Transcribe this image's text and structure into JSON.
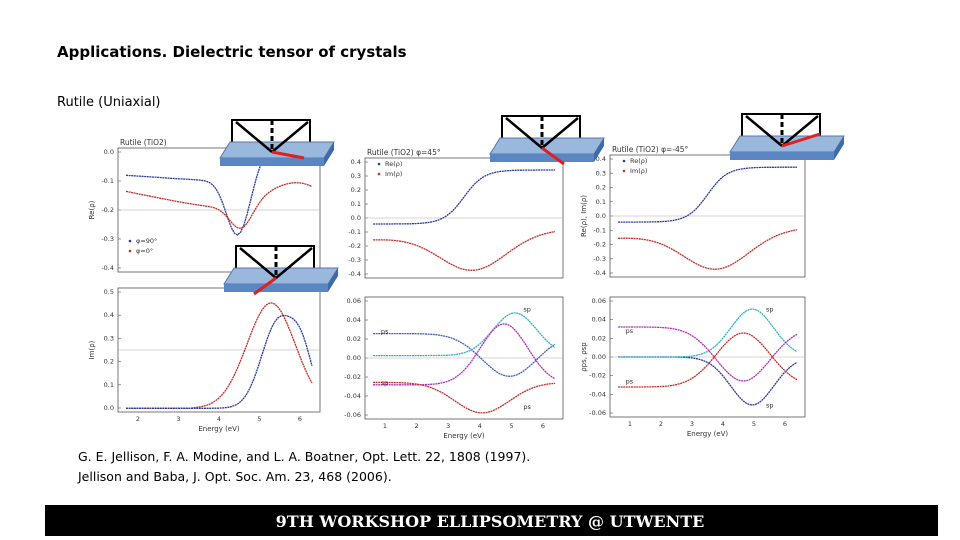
{
  "slide": {
    "title": "Applications. Dielectric tensor of crystals",
    "subtitle": "Rutile (Uniaxial)",
    "citations": [
      "G. E. Jellison, F. A. Modine, and L. A. Boatner, Opt. Lett. 22, 1808 (1997).",
      "Jellison and Baba, J. Opt. Soc. Am. 23, 468 (2006)."
    ],
    "footer": "9TH WORKSHOP ELLIPSOMETRY @ UTWENTE"
  },
  "panels": [
    {
      "title": "Rutile (TiO2)",
      "ylabel": "Re(ρ)",
      "yticks": [
        "0.0",
        "-0.1",
        "-0.2",
        "-0.3",
        "-0.4"
      ],
      "xticks": [],
      "xlabel": "",
      "legend": [
        "φ=90°",
        "φ=0°"
      ],
      "labels": []
    },
    {
      "title": "",
      "ylabel": "Im(ρ)",
      "yticks": [
        "0.5",
        "0.4",
        "0.3",
        "0.2",
        "0.1",
        "0.0"
      ],
      "xticks": [
        "2",
        "3",
        "4",
        "5",
        "6"
      ],
      "xlabel": "Energy (eV)",
      "legend": [],
      "labels": []
    },
    {
      "title": "Rutile (TiO2) φ=45°",
      "ylabel": "",
      "yticks": [
        "0.4",
        "0.3",
        "0.2",
        "0.1",
        "0.0",
        "-0.1",
        "-0.2",
        "-0.3",
        "-0.4"
      ],
      "xticks": [],
      "xlabel": "",
      "legend": [
        "Re(ρ)",
        "Im(ρ)"
      ],
      "labels": []
    },
    {
      "title": "",
      "ylabel": "",
      "yticks": [
        "0.06",
        "0.04",
        "0.02",
        "0.00",
        "-0.02",
        "-0.04",
        "-0.06"
      ],
      "xticks": [
        "1",
        "2",
        "3",
        "4",
        "5",
        "6"
      ],
      "xlabel": "Energy (eV)",
      "legend": [],
      "labels": [
        "ps",
        "sp",
        "sp",
        "ps"
      ]
    },
    {
      "title": "Rutile (TiO2) φ=-45°",
      "ylabel": "Re(ρ), Im(ρ)",
      "yticks": [
        "0.4",
        "0.3",
        "0.2",
        "0.1",
        "0.0",
        "-0.1",
        "-0.2",
        "-0.3",
        "-0.4"
      ],
      "xticks": [],
      "xlabel": "",
      "legend": [
        "Re(ρ)",
        "Im(ρ)"
      ],
      "labels": []
    },
    {
      "title": "",
      "ylabel": "ρps, ρsp",
      "yticks": [
        "0.06",
        "0.04",
        "0.02",
        "0.00",
        "-0.02",
        "-0.04",
        "-0.06"
      ],
      "xticks": [
        "1",
        "2",
        "3",
        "4",
        "5",
        "6"
      ],
      "xlabel": "Energy (eV)",
      "legend": [],
      "labels": [
        "ps",
        "sp",
        "ps",
        "sp"
      ]
    }
  ]
}
